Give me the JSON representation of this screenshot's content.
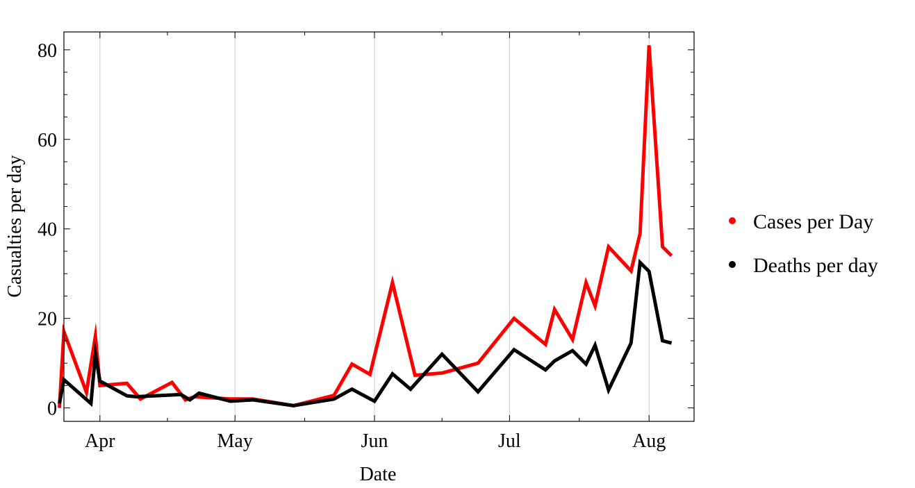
{
  "chart_data": {
    "type": "line",
    "title": "",
    "xlabel": "Date",
    "ylabel": "Casualties per day",
    "x_range": [
      "2020-03-24",
      "2020-08-11"
    ],
    "ylim": [
      -3,
      84
    ],
    "y_ticks": [
      0,
      20,
      40,
      60,
      80
    ],
    "x_ticks": [
      {
        "date": "2020-04-01",
        "label": "Apr"
      },
      {
        "date": "2020-05-01",
        "label": "May"
      },
      {
        "date": "2020-06-01",
        "label": "Jun"
      },
      {
        "date": "2020-07-01",
        "label": "Jul"
      },
      {
        "date": "2020-08-01",
        "label": "Aug"
      }
    ],
    "grid": "vertical lines at month starts",
    "legend_position": "right",
    "series": [
      {
        "name": "Cases per Day",
        "color": "#ff0000",
        "points": [
          [
            "2020-03-23",
            0
          ],
          [
            "2020-03-24",
            17
          ],
          [
            "2020-03-29",
            3.5
          ],
          [
            "2020-03-31",
            16
          ],
          [
            "2020-04-01",
            5
          ],
          [
            "2020-04-07",
            5.5
          ],
          [
            "2020-04-10",
            2
          ],
          [
            "2020-04-17",
            5.7
          ],
          [
            "2020-04-20",
            1.8
          ],
          [
            "2020-04-22",
            2.5
          ],
          [
            "2020-04-30",
            2
          ],
          [
            "2020-05-05",
            2
          ],
          [
            "2020-05-14",
            0.5
          ],
          [
            "2020-05-23",
            2.8
          ],
          [
            "2020-05-27",
            9.8
          ],
          [
            "2020-05-31",
            7.5
          ],
          [
            "2020-06-05",
            28
          ],
          [
            "2020-06-10",
            7.3
          ],
          [
            "2020-06-16",
            7.8
          ],
          [
            "2020-06-24",
            10
          ],
          [
            "2020-07-02",
            20
          ],
          [
            "2020-07-09",
            14.2
          ],
          [
            "2020-07-11",
            22
          ],
          [
            "2020-07-15",
            15.3
          ],
          [
            "2020-07-18",
            28
          ],
          [
            "2020-07-20",
            22.8
          ],
          [
            "2020-07-23",
            36
          ],
          [
            "2020-07-28",
            30.6
          ],
          [
            "2020-07-30",
            39
          ],
          [
            "2020-08-01",
            81
          ],
          [
            "2020-08-04",
            36
          ],
          [
            "2020-08-06",
            34
          ]
        ]
      },
      {
        "name": "Deaths per day",
        "color": "#000000",
        "points": [
          [
            "2020-03-23",
            1
          ],
          [
            "2020-03-24",
            6.3
          ],
          [
            "2020-03-30",
            1
          ],
          [
            "2020-03-31",
            12
          ],
          [
            "2020-04-01",
            6
          ],
          [
            "2020-04-07",
            2.7
          ],
          [
            "2020-04-09",
            2.5
          ],
          [
            "2020-04-15",
            2.8
          ],
          [
            "2020-04-19",
            3
          ],
          [
            "2020-04-21",
            1.8
          ],
          [
            "2020-04-23",
            3.3
          ],
          [
            "2020-04-30",
            1.5
          ],
          [
            "2020-05-05",
            1.8
          ],
          [
            "2020-05-14",
            0.5
          ],
          [
            "2020-05-23",
            2
          ],
          [
            "2020-05-27",
            4.2
          ],
          [
            "2020-06-01",
            1.5
          ],
          [
            "2020-06-05",
            7.6
          ],
          [
            "2020-06-09",
            4.2
          ],
          [
            "2020-06-16",
            12
          ],
          [
            "2020-06-24",
            3.6
          ],
          [
            "2020-07-02",
            13
          ],
          [
            "2020-07-09",
            8.5
          ],
          [
            "2020-07-11",
            10.5
          ],
          [
            "2020-07-15",
            12.8
          ],
          [
            "2020-07-18",
            9.8
          ],
          [
            "2020-07-20",
            14
          ],
          [
            "2020-07-23",
            4
          ],
          [
            "2020-07-28",
            14.5
          ],
          [
            "2020-07-30",
            32.5
          ],
          [
            "2020-08-01",
            30.5
          ],
          [
            "2020-08-04",
            15
          ],
          [
            "2020-08-06",
            14.5
          ]
        ]
      }
    ]
  }
}
